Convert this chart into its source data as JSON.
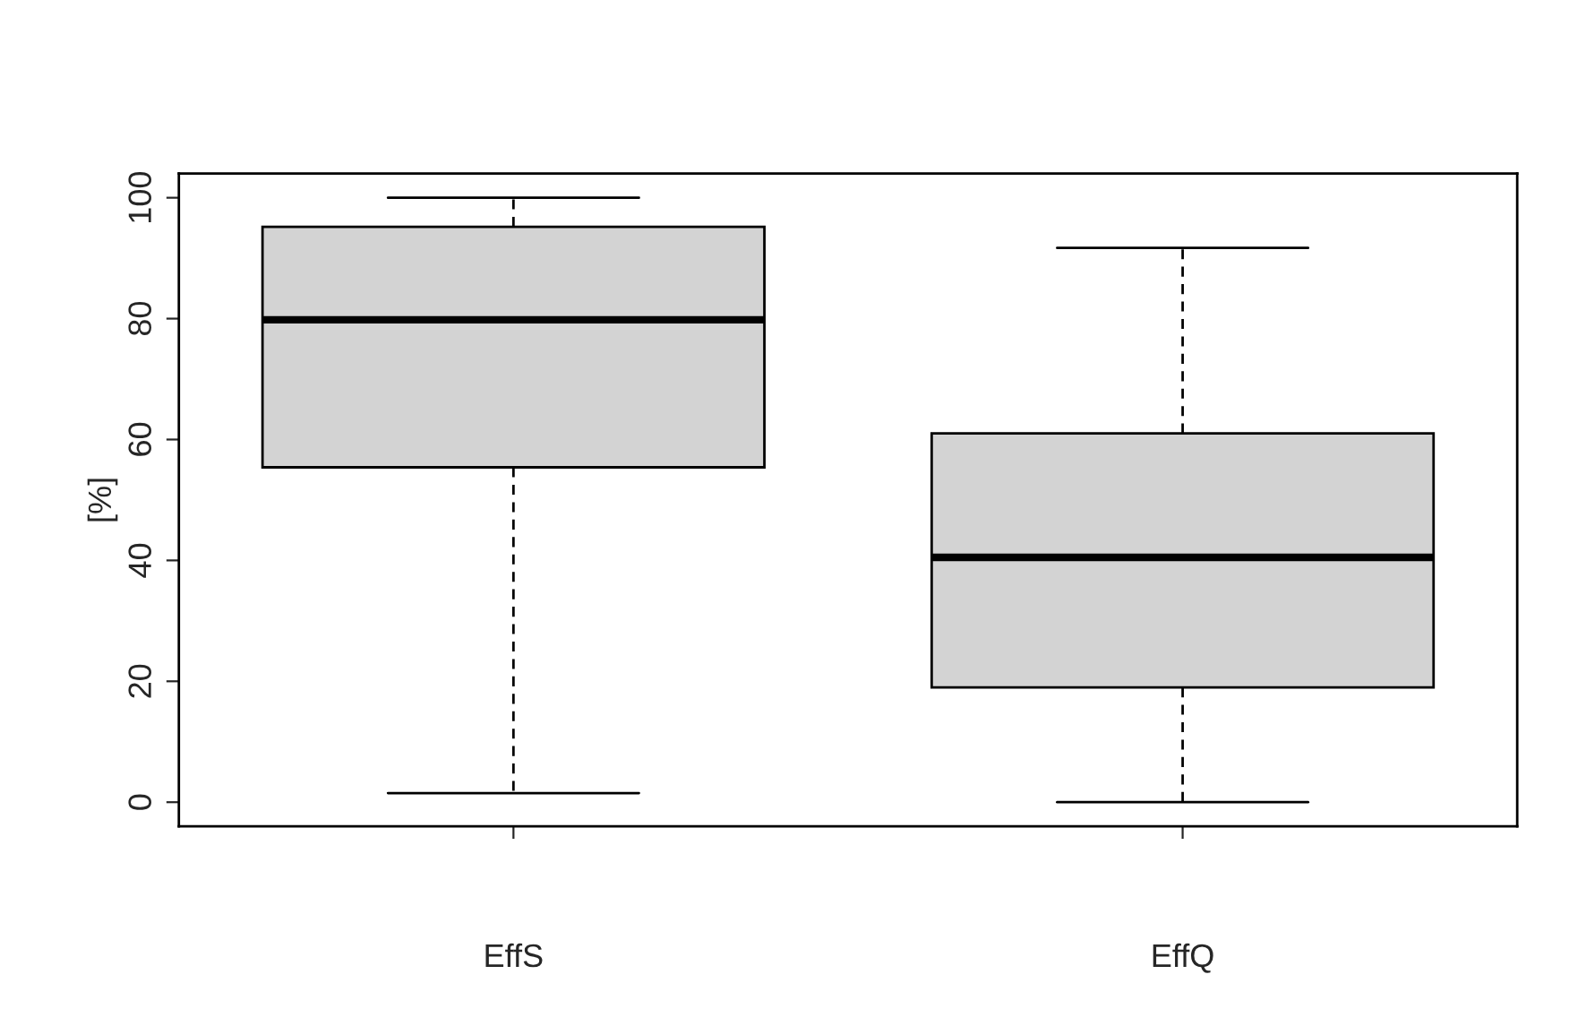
{
  "chart_data": {
    "type": "box",
    "ylabel": "[%]",
    "categories": [
      "EffS",
      "EffQ"
    ],
    "boxes": [
      {
        "low": 1.5,
        "q1": 55.4,
        "median": 79.8,
        "q3": 95.2,
        "high": 100
      },
      {
        "low": 0,
        "q1": 19,
        "median": 40.5,
        "q3": 61,
        "high": 91.7
      }
    ],
    "colors": [
      "#d3d3d3",
      "#d3d3d3"
    ],
    "ylim": [
      -4,
      104
    ],
    "yticks": [
      0,
      20,
      40,
      60,
      80,
      100
    ]
  }
}
